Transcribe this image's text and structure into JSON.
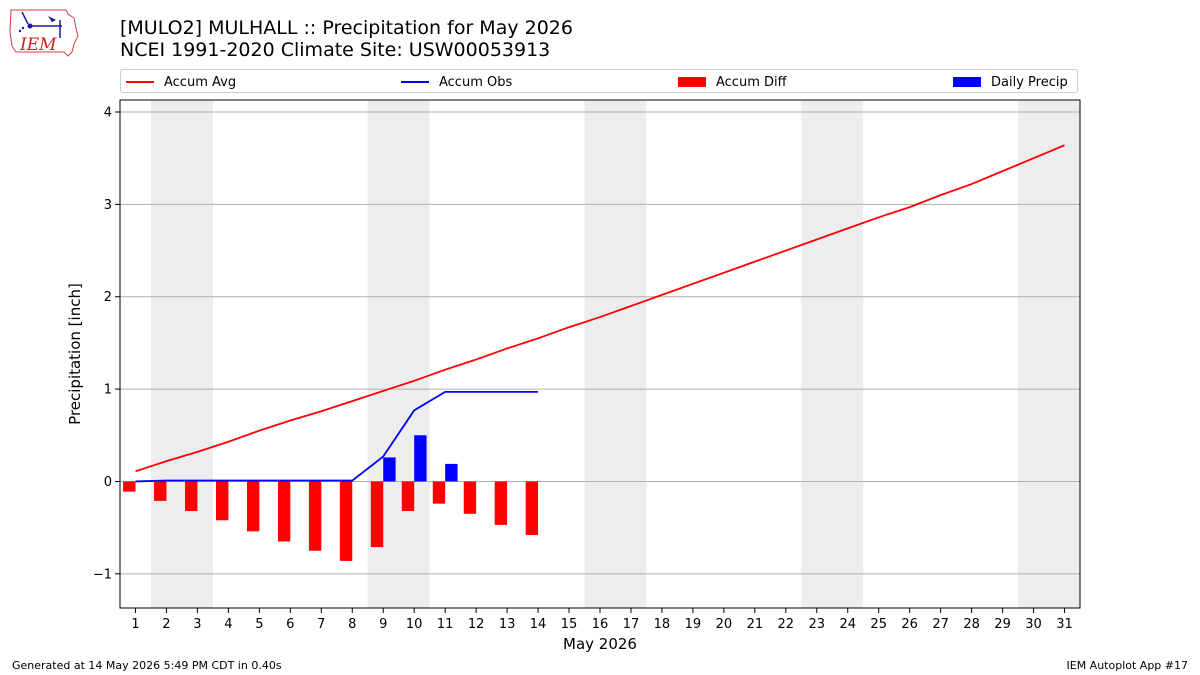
{
  "header": {
    "logo_text": "IEM",
    "title_line1": "[MULO2] MULHALL :: Precipitation for May 2026",
    "title_line2": "NCEI 1991-2020 Climate Site: USW00053913"
  },
  "footer": {
    "generated": "Generated at 14 May 2026 5:49 PM CDT in 0.40s",
    "app": "IEM Autoplot App #17"
  },
  "colors": {
    "avg": "#ff0000",
    "obs": "#0000ff",
    "diff": "#ff0000",
    "precip": "#0000ff",
    "weekend": "#ededed",
    "grid": "#b0b0b0"
  },
  "chart_data": {
    "type": "bar",
    "xlabel": "May 2026",
    "ylabel": "Precipitation [inch]",
    "xlim": [
      0.5,
      31.5
    ],
    "ylim": [
      -1.37,
      4.13
    ],
    "yticks": [
      -1,
      0,
      1,
      2,
      3,
      4
    ],
    "ytick_labels": [
      "−1",
      "0",
      "1",
      "2",
      "3",
      "4"
    ],
    "grid": "horizontal",
    "legend_position": "top",
    "shaded_weekend_ranges": [
      [
        1.5,
        3.5
      ],
      [
        8.5,
        10.5
      ],
      [
        15.5,
        17.5
      ],
      [
        22.5,
        24.5
      ],
      [
        29.5,
        31.5
      ]
    ],
    "days": [
      1,
      2,
      3,
      4,
      5,
      6,
      7,
      8,
      9,
      10,
      11,
      12,
      13,
      14,
      15,
      16,
      17,
      18,
      19,
      20,
      21,
      22,
      23,
      24,
      25,
      26,
      27,
      28,
      29,
      30,
      31
    ],
    "legend": [
      {
        "name": "Accum Avg",
        "kind": "line",
        "color": "#ff0000"
      },
      {
        "name": "Accum Obs",
        "kind": "line",
        "color": "#0000ff"
      },
      {
        "name": "Accum Diff",
        "kind": "bar",
        "color": "#ff0000"
      },
      {
        "name": "Daily Precip",
        "kind": "bar",
        "color": "#0000ff"
      }
    ],
    "series": [
      {
        "name": "Accum Avg",
        "type": "line",
        "x": [
          1,
          2,
          3,
          4,
          5,
          6,
          7,
          8,
          9,
          10,
          11,
          12,
          13,
          14,
          15,
          16,
          17,
          18,
          19,
          20,
          21,
          22,
          23,
          24,
          25,
          26,
          27,
          28,
          29,
          30,
          31
        ],
        "values": [
          0.11,
          0.22,
          0.32,
          0.43,
          0.55,
          0.66,
          0.76,
          0.87,
          0.98,
          1.09,
          1.21,
          1.32,
          1.44,
          1.55,
          1.67,
          1.78,
          1.9,
          2.02,
          2.14,
          2.26,
          2.38,
          2.5,
          2.62,
          2.74,
          2.86,
          2.97,
          3.1,
          3.22,
          3.36,
          3.5,
          3.64
        ]
      },
      {
        "name": "Accum Obs",
        "type": "line",
        "x": [
          1,
          2,
          3,
          4,
          5,
          6,
          7,
          8,
          9,
          10,
          11,
          12,
          13,
          14
        ],
        "values": [
          0.0,
          0.01,
          0.01,
          0.01,
          0.01,
          0.01,
          0.01,
          0.01,
          0.27,
          0.77,
          0.97,
          0.97,
          0.97,
          0.97
        ]
      },
      {
        "name": "Accum Diff",
        "type": "bar",
        "x": [
          1,
          2,
          3,
          4,
          5,
          6,
          7,
          8,
          9,
          10,
          11,
          12,
          13,
          14
        ],
        "values": [
          -0.11,
          -0.21,
          -0.32,
          -0.42,
          -0.54,
          -0.65,
          -0.75,
          -0.86,
          -0.71,
          -0.32,
          -0.24,
          -0.35,
          -0.47,
          -0.58
        ]
      },
      {
        "name": "Daily Precip",
        "type": "bar",
        "x": [
          9,
          10,
          11
        ],
        "values": [
          0.26,
          0.5,
          0.19
        ]
      }
    ]
  }
}
